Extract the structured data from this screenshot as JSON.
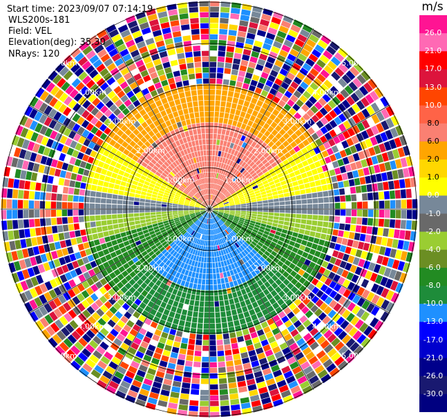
{
  "header": {
    "start_time": "Start time: 2023/09/07 07:14:19",
    "instrument": "WLS200s-181",
    "field": "Field: VEL",
    "elevation": "Elevation(deg): 35.30",
    "nrays": "NRays: 120"
  },
  "ring_labels": [
    "1.00km",
    "2.00km",
    "3.00km",
    "4.00km",
    "5.00km"
  ],
  "colorbar": {
    "unit": "m/s",
    "ticks": [
      "26.0",
      "21.0",
      "17.0",
      "13.0",
      "10.0",
      "8.0",
      "6.0",
      "2.0",
      "1.0",
      "0.0",
      "-1.0",
      "-2.0",
      "-4.0",
      "-6.0",
      "-8.0",
      "-10.0",
      "-13.0",
      "-17.0",
      "-21.0",
      "-26.0",
      "-30.0"
    ],
    "colors": [
      "#ff1493",
      "#ff69b4",
      "#ff0000",
      "#dc143c",
      "#ff4500",
      "#ff6347",
      "#fa8072",
      "#ffa500",
      "#ffd700",
      "#ffff00",
      "#778899",
      "#696969",
      "#9acd32",
      "#6b8e23",
      "#228b22",
      "#1e8c3a",
      "#1e90ff",
      "#0000ff",
      "#0000cd",
      "#00008b",
      "#191970",
      "#000080"
    ]
  }
}
